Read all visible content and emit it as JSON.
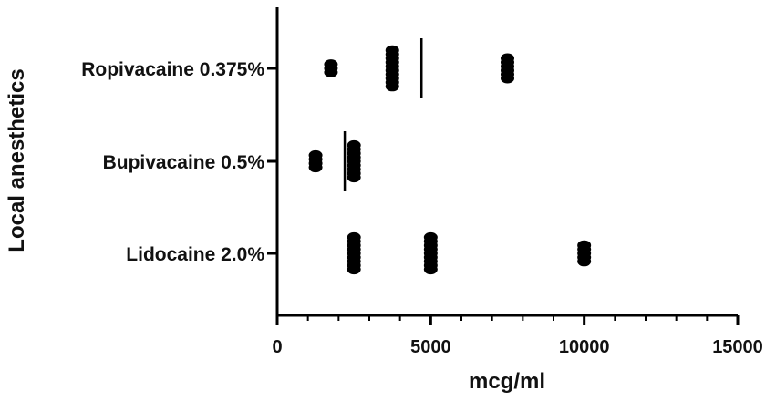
{
  "chart_data": {
    "type": "scatter",
    "orientation": "horizontal",
    "title": "",
    "xlabel": "mcg/ml",
    "ylabel": "Local anesthetics",
    "xlim": [
      0,
      15000
    ],
    "x_ticks": [
      0,
      5000,
      10000,
      15000
    ],
    "x_minor_step": 1000,
    "grid": false,
    "legend": "none",
    "point_color": "#000000",
    "categories": [
      "Ropivacaine 0.375%",
      "Bupivacaine 0.5%",
      "Lidocaine 2.0%"
    ],
    "series": [
      {
        "category": "Ropivacaine 0.375%",
        "points": [
          {
            "x": 1750,
            "count": 3
          },
          {
            "x": 3750,
            "count": 10
          },
          {
            "x": 7500,
            "count": 6
          }
        ],
        "median": 4700
      },
      {
        "category": "Bupivacaine 0.5%",
        "points": [
          {
            "x": 1250,
            "count": 4
          },
          {
            "x": 2500,
            "count": 9
          }
        ],
        "median": 2200
      },
      {
        "category": "Lidocaine 2.0%",
        "points": [
          {
            "x": 2500,
            "count": 9
          },
          {
            "x": 5000,
            "count": 9
          },
          {
            "x": 10000,
            "count": 5
          }
        ]
      }
    ]
  }
}
